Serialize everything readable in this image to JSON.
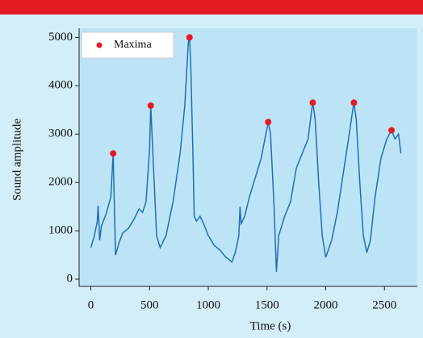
{
  "chart_data": {
    "type": "line",
    "xlabel": "Time (s)",
    "ylabel": "Sound amplitude",
    "xlim": [
      -100,
      2780
    ],
    "ylim": [
      -150,
      5190
    ],
    "xticks": [
      0,
      500,
      1000,
      1500,
      2000,
      2500
    ],
    "yticks": [
      0,
      1000,
      2000,
      3000,
      4000,
      5000
    ],
    "legend": "upper left",
    "series": [
      {
        "type": "line",
        "color": "#1f6fb4",
        "x": [
          0,
          30,
          55,
          62,
          75,
          90,
          130,
          170,
          190,
          210,
          240,
          270,
          320,
          370,
          410,
          440,
          470,
          500,
          510,
          530,
          560,
          590,
          640,
          700,
          760,
          800,
          830,
          840,
          850,
          870,
          880,
          900,
          930,
          960,
          1000,
          1050,
          1100,
          1150,
          1180,
          1200,
          1230,
          1260,
          1270,
          1280,
          1310,
          1350,
          1400,
          1450,
          1490,
          1510,
          1530,
          1560,
          1580,
          1600,
          1650,
          1700,
          1750,
          1800,
          1850,
          1880,
          1890,
          1910,
          1940,
          1970,
          2000,
          2050,
          2100,
          2150,
          2200,
          2230,
          2240,
          2260,
          2290,
          2320,
          2350,
          2380,
          2420,
          2470,
          2520,
          2560,
          2590,
          2620,
          2640
        ],
        "values": [
          650,
          900,
          1200,
          1520,
          800,
          1100,
          1350,
          1700,
          2600,
          500,
          750,
          950,
          1050,
          1250,
          1450,
          1380,
          1600,
          2700,
          3590,
          2500,
          900,
          650,
          900,
          1600,
          2600,
          3600,
          4900,
          5000,
          4500,
          2500,
          1300,
          1200,
          1300,
          1150,
          900,
          700,
          600,
          450,
          400,
          350,
          550,
          900,
          1500,
          1150,
          1300,
          1700,
          2100,
          2500,
          3000,
          3250,
          3000,
          1500,
          150,
          900,
          1300,
          1600,
          2300,
          2600,
          2900,
          3500,
          3650,
          3300,
          2000,
          900,
          450,
          800,
          1400,
          2200,
          3000,
          3500,
          3650,
          3300,
          2000,
          900,
          550,
          800,
          1700,
          2500,
          2900,
          3080,
          2900,
          3000,
          2600
        ]
      },
      {
        "type": "scatter",
        "name": "Maxima",
        "color": "#e31b23",
        "x": [
          190,
          510,
          840,
          1510,
          1890,
          2240,
          2560
        ],
        "values": [
          2600,
          3590,
          5000,
          3250,
          3650,
          3650,
          3080
        ]
      }
    ]
  }
}
